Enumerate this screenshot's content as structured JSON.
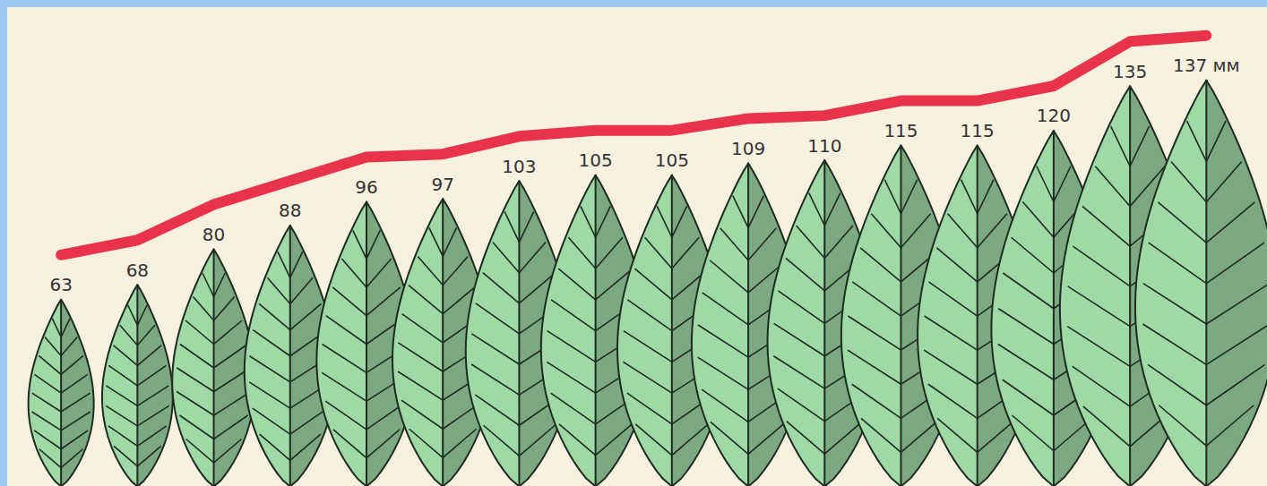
{
  "chart_data": {
    "type": "bar",
    "categories": [
      null,
      null,
      null,
      null,
      null,
      null,
      null,
      null,
      null,
      null,
      null,
      null,
      null,
      null,
      null,
      null
    ],
    "series": [
      {
        "type": "bar",
        "color": "#9fd9a6",
        "values": [
          63,
          68,
          80,
          88,
          96,
          97,
          103,
          105,
          105,
          109,
          110,
          115,
          115,
          120,
          135,
          137
        ],
        "value_labels": [
          "63",
          "68",
          "80",
          "88",
          "96",
          "97",
          "103",
          "105",
          "105",
          "109",
          "110",
          "115",
          "115",
          "120",
          "135",
          "137 мм"
        ]
      },
      {
        "type": "line",
        "color": "#e8334a",
        "values": [
          63,
          68,
          80,
          88,
          96,
          97,
          103,
          105,
          105,
          109,
          110,
          115,
          115,
          120,
          135,
          137
        ]
      }
    ],
    "ylim": [
      0,
      160
    ],
    "data_labels": true,
    "tick_labels": false
  }
}
